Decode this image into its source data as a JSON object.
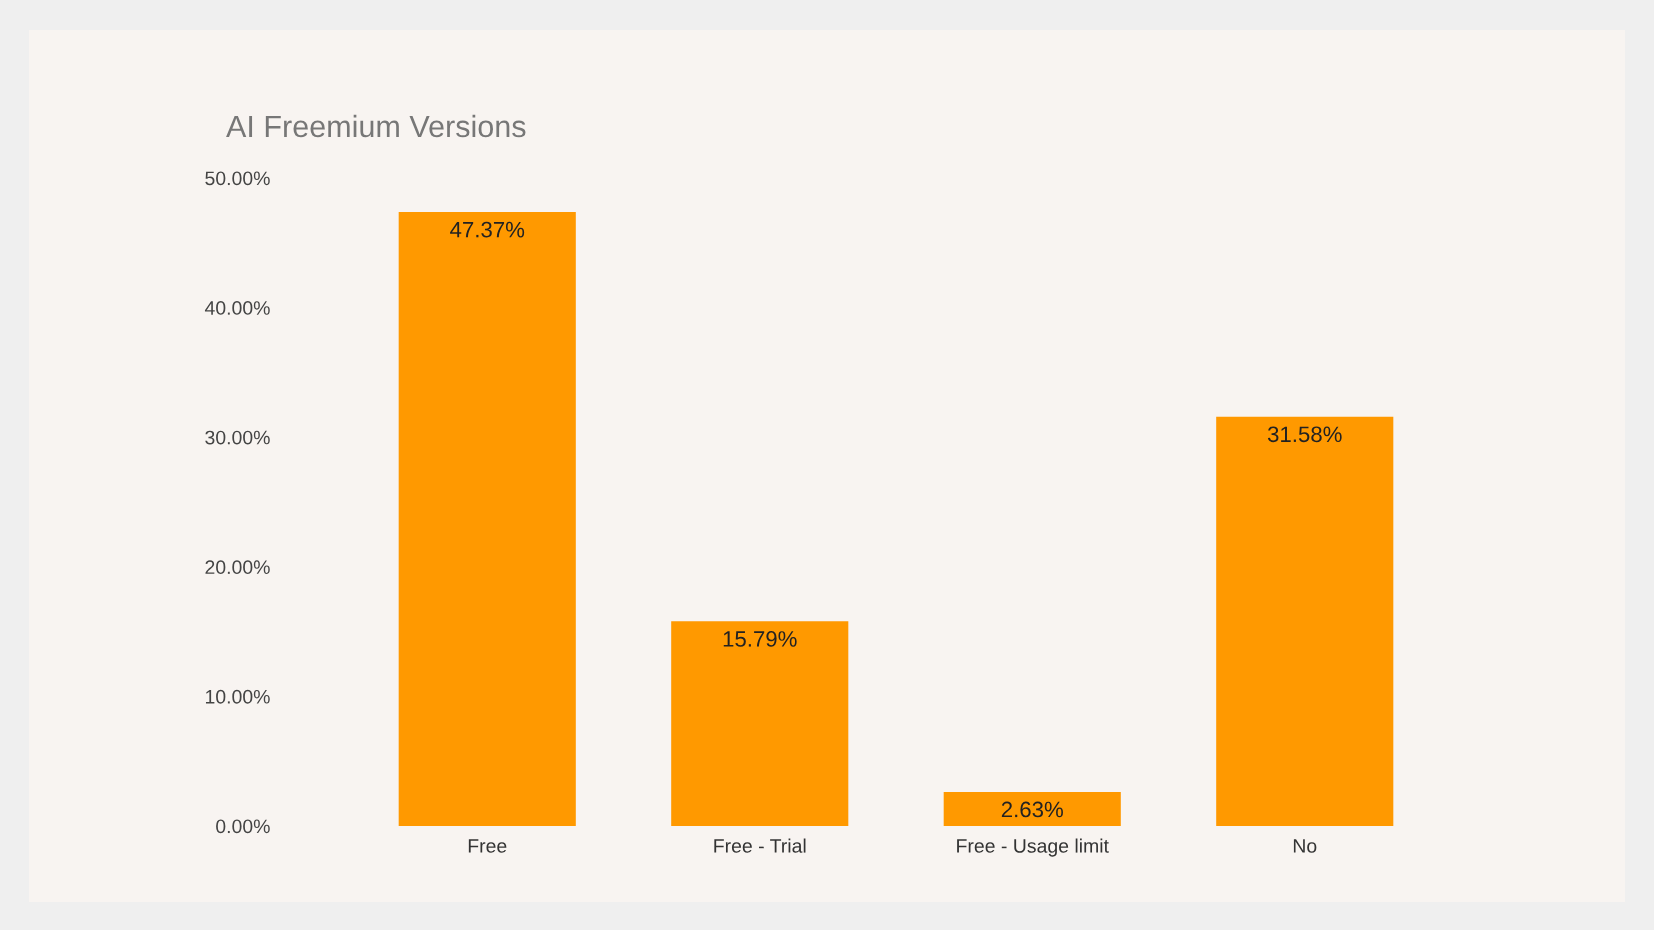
{
  "chart_data": {
    "type": "bar",
    "title": "AI Freemium Versions",
    "categories": [
      "Free",
      "Free - Trial",
      "Free - Usage limit",
      "No"
    ],
    "values": [
      47.37,
      15.79,
      2.63,
      31.58
    ],
    "color": "#ff9900",
    "value_labels": [
      "47.37%",
      "15.79%",
      "2.63%",
      "31.58%"
    ],
    "ylim": [
      0,
      50
    ],
    "yticks": [
      {
        "value": 0,
        "label": "0.00%"
      },
      {
        "value": 10,
        "label": "10.00%"
      },
      {
        "value": 20,
        "label": "20.00%"
      },
      {
        "value": 30,
        "label": "30.00%"
      },
      {
        "value": 40,
        "label": "40.00%"
      },
      {
        "value": 50,
        "label": "50.00%"
      }
    ],
    "grid": false,
    "legend": false
  }
}
